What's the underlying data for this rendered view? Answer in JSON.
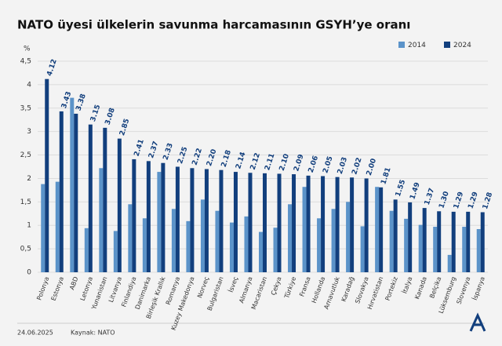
{
  "chart_data": {
    "type": "bar",
    "title": "NATO üyesi ülkelerin savunma harcamasının GSYH’ye oranı",
    "y_label": "%",
    "categories": [
      "Polonya",
      "Estonya",
      "ABD",
      "Letonya",
      "Yunanistan",
      "Litvanya",
      "Finlandiya",
      "Danimarka",
      "Birleşik Krallık",
      "Romanya",
      "Kuzey Makedonya",
      "Norveç",
      "Bulgaristan",
      "İsveç",
      "Almanya",
      "Macaristan",
      "Çekya",
      "Türkiye",
      "Fransa",
      "Hollanda",
      "Arnavutluk",
      "Karadağ",
      "Slovakya",
      "Hırvatistan",
      "Portekiz",
      "İtalya",
      "Kanada",
      "Belçika",
      "Lüksemburg",
      "Slovenya",
      "İspanya"
    ],
    "series": [
      {
        "name": "2014",
        "color": "#5b93c9",
        "values": [
          1.88,
          1.93,
          3.72,
          0.94,
          2.22,
          0.88,
          1.45,
          1.15,
          2.14,
          1.35,
          1.09,
          1.55,
          1.31,
          1.06,
          1.19,
          0.86,
          0.95,
          1.45,
          1.82,
          1.15,
          1.35,
          1.5,
          0.98,
          1.82,
          1.31,
          1.14,
          1.01,
          0.97,
          0.37,
          0.97,
          0.92
        ]
      },
      {
        "name": "2024",
        "color": "#123f7d",
        "values": [
          4.12,
          3.43,
          3.38,
          3.15,
          3.08,
          2.85,
          2.41,
          2.37,
          2.33,
          2.25,
          2.22,
          2.2,
          2.18,
          2.14,
          2.12,
          2.11,
          2.1,
          2.09,
          2.06,
          2.05,
          2.03,
          2.02,
          2.0,
          1.81,
          1.55,
          1.49,
          1.37,
          1.3,
          1.29,
          1.29,
          1.28
        ],
        "value_labels": [
          "4.12",
          "3.43",
          "3.38",
          "3.15",
          "3.08",
          "2.85",
          "2.41",
          "2.37",
          "2.33",
          "2.25",
          "2.22",
          "2.20",
          "2.18",
          "2.14",
          "2.12",
          "2.11",
          "2.10",
          "2.09",
          "2.06",
          "2.05",
          "2.03",
          "2.02",
          "2.00",
          "1.81",
          "1.55",
          "1.49",
          "1.37",
          "1.30",
          "1.29",
          "1.29",
          "1.28"
        ]
      }
    ],
    "ylim": [
      0,
      4.5
    ],
    "yticks": [
      0,
      {
        "value": 0.5,
        "label": "0,5"
      },
      1,
      {
        "value": 1.5,
        "label": "1,5"
      },
      2,
      {
        "value": 2.5,
        "label": "2,5"
      },
      3,
      {
        "value": 3.5,
        "label": "3,5"
      },
      4,
      {
        "value": 4.5,
        "label": "4,5"
      }
    ],
    "grid": true,
    "legend": "top-right"
  },
  "footer": {
    "date": "24.06.2025",
    "source": "Kaynak: NATO"
  }
}
